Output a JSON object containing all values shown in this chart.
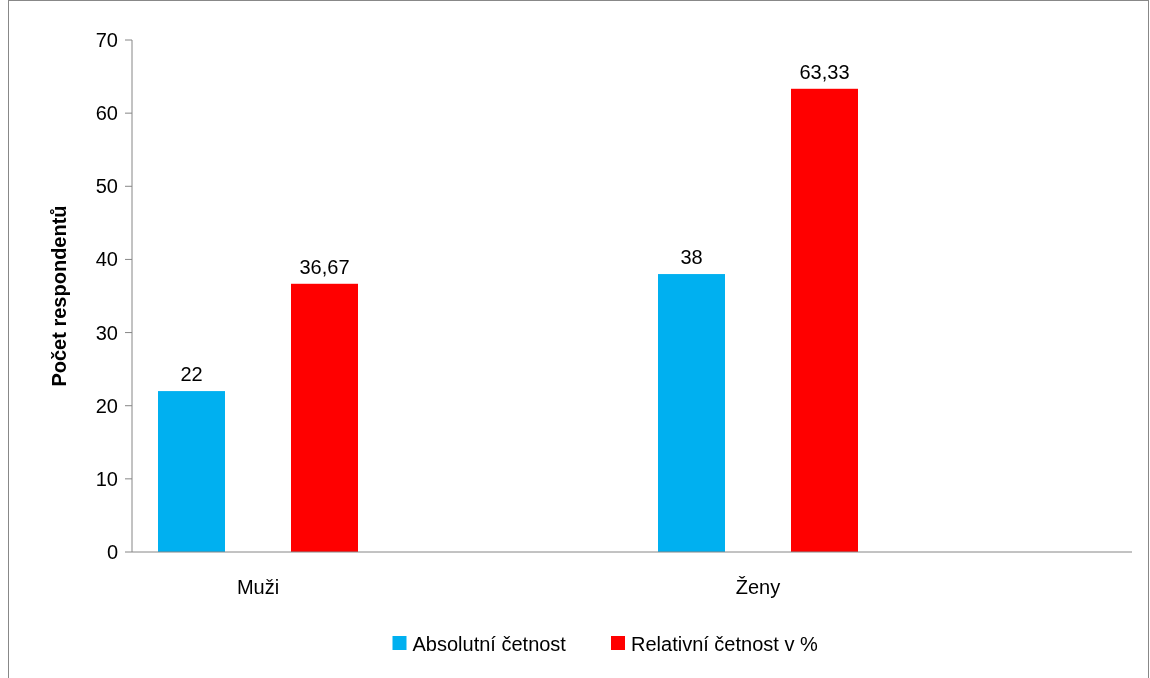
{
  "chart_data": {
    "type": "bar",
    "ylabel": "Počet respondentů",
    "categories": [
      "Muži",
      "Ženy"
    ],
    "series": [
      {
        "name": "Absolutní četnost",
        "color": "#00b0f0",
        "values": [
          22,
          38
        ],
        "value_labels": [
          "22",
          "38"
        ]
      },
      {
        "name": "Relativní četnost v %",
        "color": "#ff0000",
        "values": [
          36.67,
          63.33
        ],
        "value_labels": [
          "36,67",
          "63,33"
        ]
      }
    ],
    "ylim": [
      0,
      70
    ],
    "yticks": [
      0,
      10,
      20,
      30,
      40,
      50,
      60,
      70
    ],
    "grid": false,
    "legend": "bottom"
  }
}
